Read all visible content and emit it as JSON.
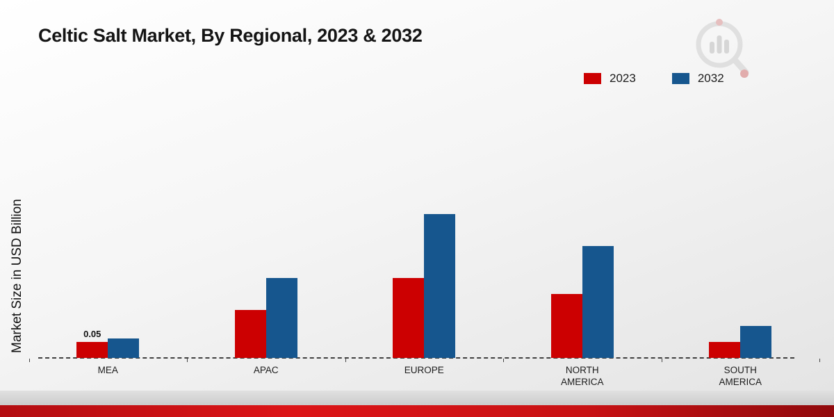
{
  "title": "Celtic Salt Market, By Regional, 2023 & 2032",
  "ylabel": "Market Size in USD Billion",
  "watermark": "brand-logo",
  "chart_data": {
    "type": "bar",
    "categories": [
      "MEA",
      "APAC",
      "EUROPE",
      "NORTH AMERICA",
      "SOUTH AMERICA"
    ],
    "series": [
      {
        "name": "2023",
        "color": "#cc0001",
        "values": [
          0.05,
          0.15,
          0.25,
          0.2,
          0.05
        ]
      },
      {
        "name": "2032",
        "color": "#16568e",
        "values": [
          0.06,
          0.25,
          0.45,
          0.35,
          0.1
        ]
      }
    ],
    "data_labels": [
      {
        "series": "2023",
        "category": "MEA",
        "value": "0.05"
      }
    ],
    "title": "Celtic Salt Market, By Regional, 2023 & 2032",
    "xlabel": "",
    "ylabel": "Market Size in USD Billion",
    "ylim": [
      0,
      0.5
    ],
    "grid": false,
    "legend_position": "top-right",
    "axis_style": "dashed-baseline-only"
  }
}
